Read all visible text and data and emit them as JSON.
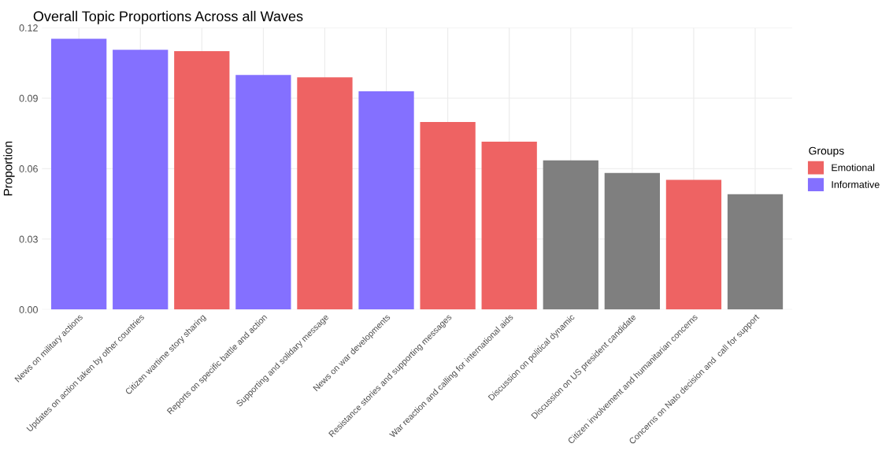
{
  "chart_data": {
    "type": "bar",
    "title": "Overall Topic Proportions Across all Waves",
    "ylabel": "Proportion",
    "legend_title": "Groups",
    "categories": [
      "News on military actions",
      "Updates on action taken by other countries",
      "Citizen wartime story sharing",
      "Reports on specific battle and action",
      "Supporting and solidary message",
      "News on war developments",
      "Resistance stories and supporting messages",
      "War reaction and calling for international aids",
      "Discussion on political dynamic",
      "Discussion on US president candidate",
      "Citizen involvement and humanitarian concerns",
      "Concerns on Nato decision and  call for support"
    ],
    "series": [
      {
        "name": "Emotional",
        "color": "#ee6363",
        "values": [
          null,
          null,
          0.11,
          null,
          0.0989,
          null,
          0.0799,
          0.0715,
          null,
          null,
          0.0552,
          null
        ]
      },
      {
        "name": "Informative",
        "color": "#8470ff",
        "values": [
          0.1153,
          0.1106,
          null,
          0.0999,
          null,
          0.0929,
          null,
          null,
          null,
          null,
          null,
          null
        ]
      },
      {
        "color": "#7f7f7f",
        "values": [
          null,
          null,
          null,
          null,
          null,
          null,
          null,
          null,
          0.0635,
          0.0582,
          null,
          0.0491
        ]
      }
    ],
    "ylim": [
      0,
      0.12
    ],
    "yticks": [
      {
        "value": 0,
        "label": "0.00"
      },
      {
        "value": 0.03,
        "label": "0.03"
      },
      {
        "value": 0.06,
        "label": "0.06"
      },
      {
        "value": 0.09,
        "label": "0.09"
      },
      {
        "value": 0.12,
        "label": "0.12"
      }
    ],
    "grid": true,
    "legend": "right"
  }
}
